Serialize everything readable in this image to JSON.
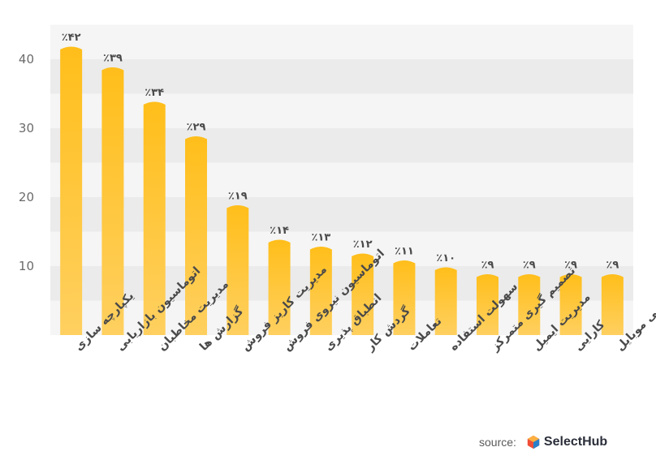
{
  "chart_data": {
    "type": "bar",
    "categories": [
      "یکپارچه سازی",
      "اتوماسیون بازاریابی",
      "مدیریت مخاطبان",
      "گزارش ها",
      "مدیریت کاریز فروش",
      "اتوماسیون نیروی فروش",
      "انطباق پذیری",
      "گردش کار",
      "تعاملات",
      "سهولت استفاده",
      "تصمیم گیری متمرکز",
      "مدیریت ایمیل",
      "کارایی",
      "دسترسی موبایل"
    ],
    "values": [
      42,
      39,
      34,
      29,
      19,
      14,
      13,
      12,
      11,
      10,
      9,
      9,
      9,
      9
    ],
    "data_labels": [
      "٪۴۲",
      "٪۳۹",
      "٪۳۴",
      "٪۲۹",
      "٪۱۹",
      "٪۱۴",
      "٪۱۳",
      "٪۱۲",
      "٪۱۱",
      "٪۱۰",
      "٪۹",
      "٪۹",
      "٪۹",
      "٪۹"
    ],
    "yticks": [
      "10",
      "20",
      "30",
      "40"
    ],
    "ytick_values": [
      10,
      20,
      30,
      40
    ],
    "ylim": [
      0,
      45
    ],
    "title": "",
    "xlabel": "",
    "ylabel": "",
    "grid": "alternating horizontal bands",
    "colors": {
      "bar_top": "#FFBE1A",
      "bar_bottom": "#FFD060",
      "band_dark": "#EBEBEB",
      "band_light": "#F5F5F5",
      "text": "#4A4A4A"
    }
  },
  "source": {
    "label": "source:",
    "brand": "SelectHub",
    "logo_icon": "selecthub-hexagon-icon"
  }
}
